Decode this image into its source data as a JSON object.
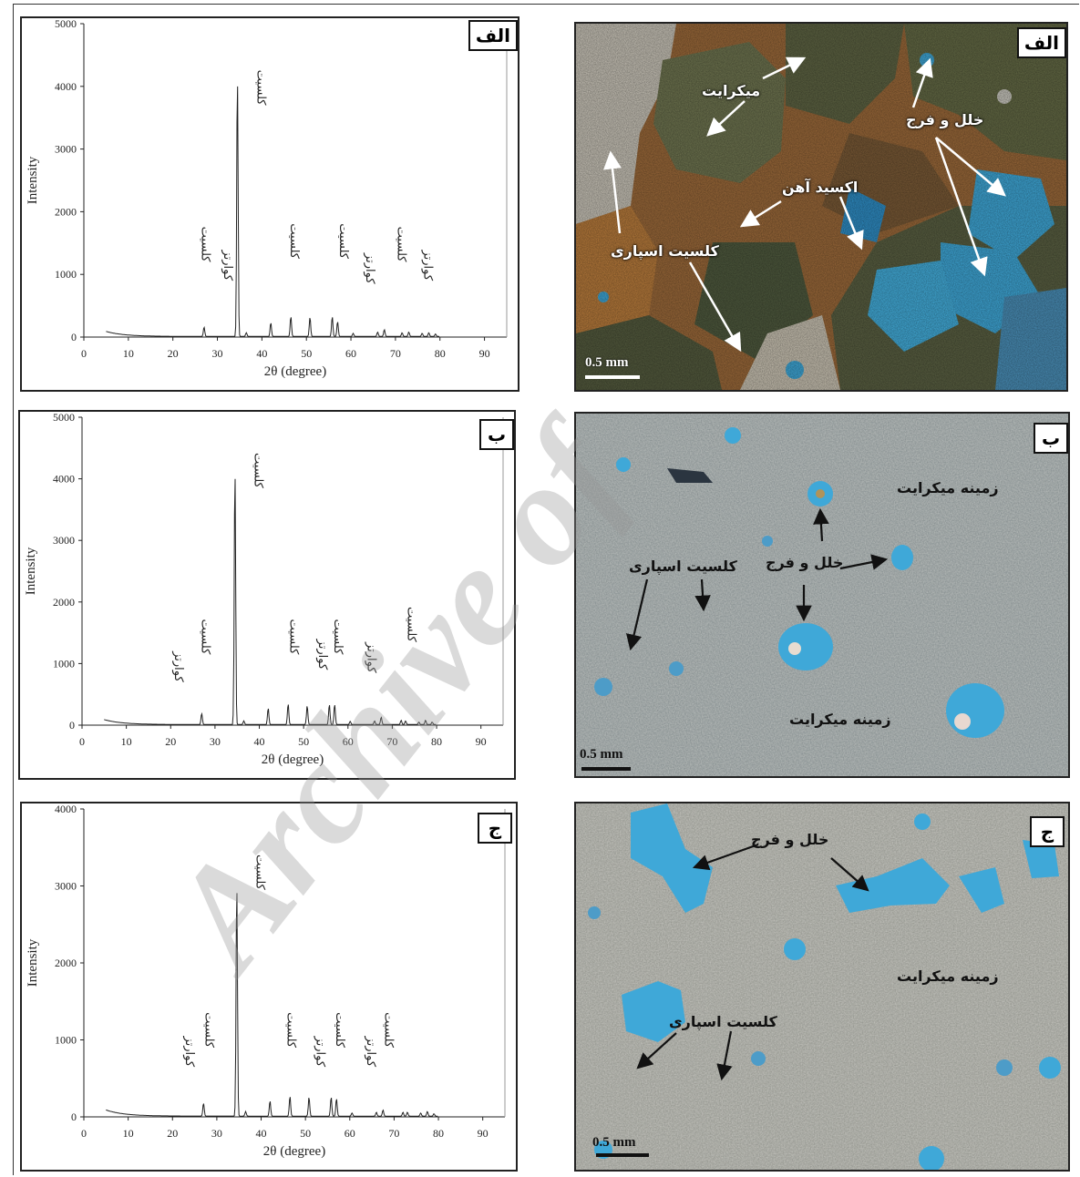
{
  "chart_data": [
    {
      "type": "line",
      "badge": "الف",
      "xlabel": "2θ (degree)",
      "ylabel": "Intensity",
      "xlim": [
        0,
        95
      ],
      "ylim": [
        0,
        5000
      ],
      "xticks": [
        0,
        10,
        20,
        30,
        40,
        50,
        60,
        70,
        80,
        90
      ],
      "yticks": [
        0,
        1000,
        2000,
        3000,
        4000,
        5000
      ],
      "peaks": [
        [
          27,
          150
        ],
        [
          34.5,
          4200
        ],
        [
          36.5,
          60
        ],
        [
          42,
          220
        ],
        [
          46.5,
          320
        ],
        [
          50.8,
          310
        ],
        [
          55.8,
          320
        ],
        [
          57,
          240
        ],
        [
          60.5,
          50
        ],
        [
          66,
          70
        ],
        [
          67.5,
          110
        ],
        [
          71.5,
          60
        ],
        [
          73,
          70
        ],
        [
          76,
          50
        ],
        [
          77.5,
          60
        ],
        [
          79,
          40
        ]
      ],
      "annotations": [
        {
          "text": "کلسیت",
          "x": 26.5,
          "y": 1200
        },
        {
          "text": "کوارتز",
          "x": 31.5,
          "y": 900
        },
        {
          "text": "کلسیت",
          "x": 39,
          "y": 3700
        },
        {
          "text": "کلسیت",
          "x": 46.5,
          "y": 1250
        },
        {
          "text": "کلسیت",
          "x": 57.5,
          "y": 1250
        },
        {
          "text": "کوارتز",
          "x": 63.5,
          "y": 850
        },
        {
          "text": "کلسیت",
          "x": 70.5,
          "y": 1200
        },
        {
          "text": "کوارتز",
          "x": 76.5,
          "y": 900
        }
      ]
    },
    {
      "type": "line",
      "badge": "ب",
      "xlabel": "2θ (degree)",
      "ylabel": "Intensity",
      "xlim": [
        0,
        95
      ],
      "ylim": [
        0,
        5000
      ],
      "xticks": [
        0,
        10,
        20,
        30,
        40,
        50,
        60,
        70,
        80,
        90
      ],
      "yticks": [
        0,
        1000,
        2000,
        3000,
        4000,
        5000
      ],
      "peaks": [
        [
          27,
          180
        ],
        [
          34.5,
          4200
        ],
        [
          36.5,
          60
        ],
        [
          42,
          270
        ],
        [
          46.5,
          340
        ],
        [
          50.8,
          310
        ],
        [
          55.8,
          330
        ],
        [
          57,
          330
        ],
        [
          60.5,
          50
        ],
        [
          66,
          60
        ],
        [
          67.5,
          120
        ],
        [
          72,
          70
        ],
        [
          73,
          60
        ],
        [
          76,
          40
        ],
        [
          77.5,
          70
        ],
        [
          79,
          40
        ]
      ],
      "annotations": [
        {
          "text": "کوارتز",
          "x": 21,
          "y": 700
        },
        {
          "text": "کلسیت",
          "x": 27,
          "y": 1150
        },
        {
          "text": "کلسیت",
          "x": 39,
          "y": 3850
        },
        {
          "text": "کلسیت",
          "x": 47,
          "y": 1150
        },
        {
          "text": "کوارتز",
          "x": 53.5,
          "y": 900
        },
        {
          "text": "کلسیت",
          "x": 57,
          "y": 1150
        },
        {
          "text": "کوارتز",
          "x": 64.5,
          "y": 850
        },
        {
          "text": "کلسیت",
          "x": 73.5,
          "y": 1350
        }
      ]
    },
    {
      "type": "line",
      "badge": "ج",
      "xlabel": "2θ (degree)",
      "ylabel": "Intensity",
      "xlim": [
        0,
        95
      ],
      "ylim": [
        0,
        4000
      ],
      "xticks": [
        0,
        10,
        20,
        30,
        40,
        50,
        60,
        70,
        80,
        90
      ],
      "yticks": [
        0,
        1000,
        2000,
        3000,
        4000
      ],
      "peaks": [
        [
          27,
          170
        ],
        [
          34.5,
          3050
        ],
        [
          36.5,
          60
        ],
        [
          42,
          200
        ],
        [
          46.5,
          260
        ],
        [
          50.8,
          250
        ],
        [
          55.8,
          250
        ],
        [
          57,
          230
        ],
        [
          60.5,
          40
        ],
        [
          66,
          50
        ],
        [
          67.5,
          80
        ],
        [
          72,
          50
        ],
        [
          73,
          50
        ],
        [
          76,
          40
        ],
        [
          77.5,
          60
        ],
        [
          79,
          30
        ]
      ],
      "annotations": [
        {
          "text": "کوارتز",
          "x": 23,
          "y": 650
        },
        {
          "text": "کلسیت",
          "x": 27.5,
          "y": 900
        },
        {
          "text": "کلسیت",
          "x": 39,
          "y": 2950
        },
        {
          "text": "کلسیت",
          "x": 46,
          "y": 900
        },
        {
          "text": "کوارتز",
          "x": 52.5,
          "y": 650
        },
        {
          "text": "کلسیت",
          "x": 57,
          "y": 900
        },
        {
          "text": "کوارتز",
          "x": 64,
          "y": 650
        },
        {
          "text": "کلسیت",
          "x": 68,
          "y": 900
        }
      ]
    }
  ],
  "photos": [
    {
      "badge": "الف",
      "scale": "0.5 mm",
      "labels": [
        "میکرایت",
        "خلل و فرج",
        "اکسید آهن",
        "کلسیت اسپاری"
      ]
    },
    {
      "badge": "ب",
      "scale": "0.5 mm",
      "labels": [
        "زمینه میکرایت",
        "خلل و فرج",
        "کلسیت اسپاری",
        "زمینه میکرایت"
      ]
    },
    {
      "badge": "ج",
      "scale": "0.5 mm",
      "labels": [
        "خلل و فرج",
        "زمینه میکرایت",
        "کلسیت اسپاری"
      ]
    }
  ],
  "colors": {
    "porosity_blue": "#3fa8d8",
    "micrite": "#6f7550",
    "iron_oxide": "#a4612a",
    "matrix_grey": "#8a9294"
  },
  "watermark": "Archive of"
}
